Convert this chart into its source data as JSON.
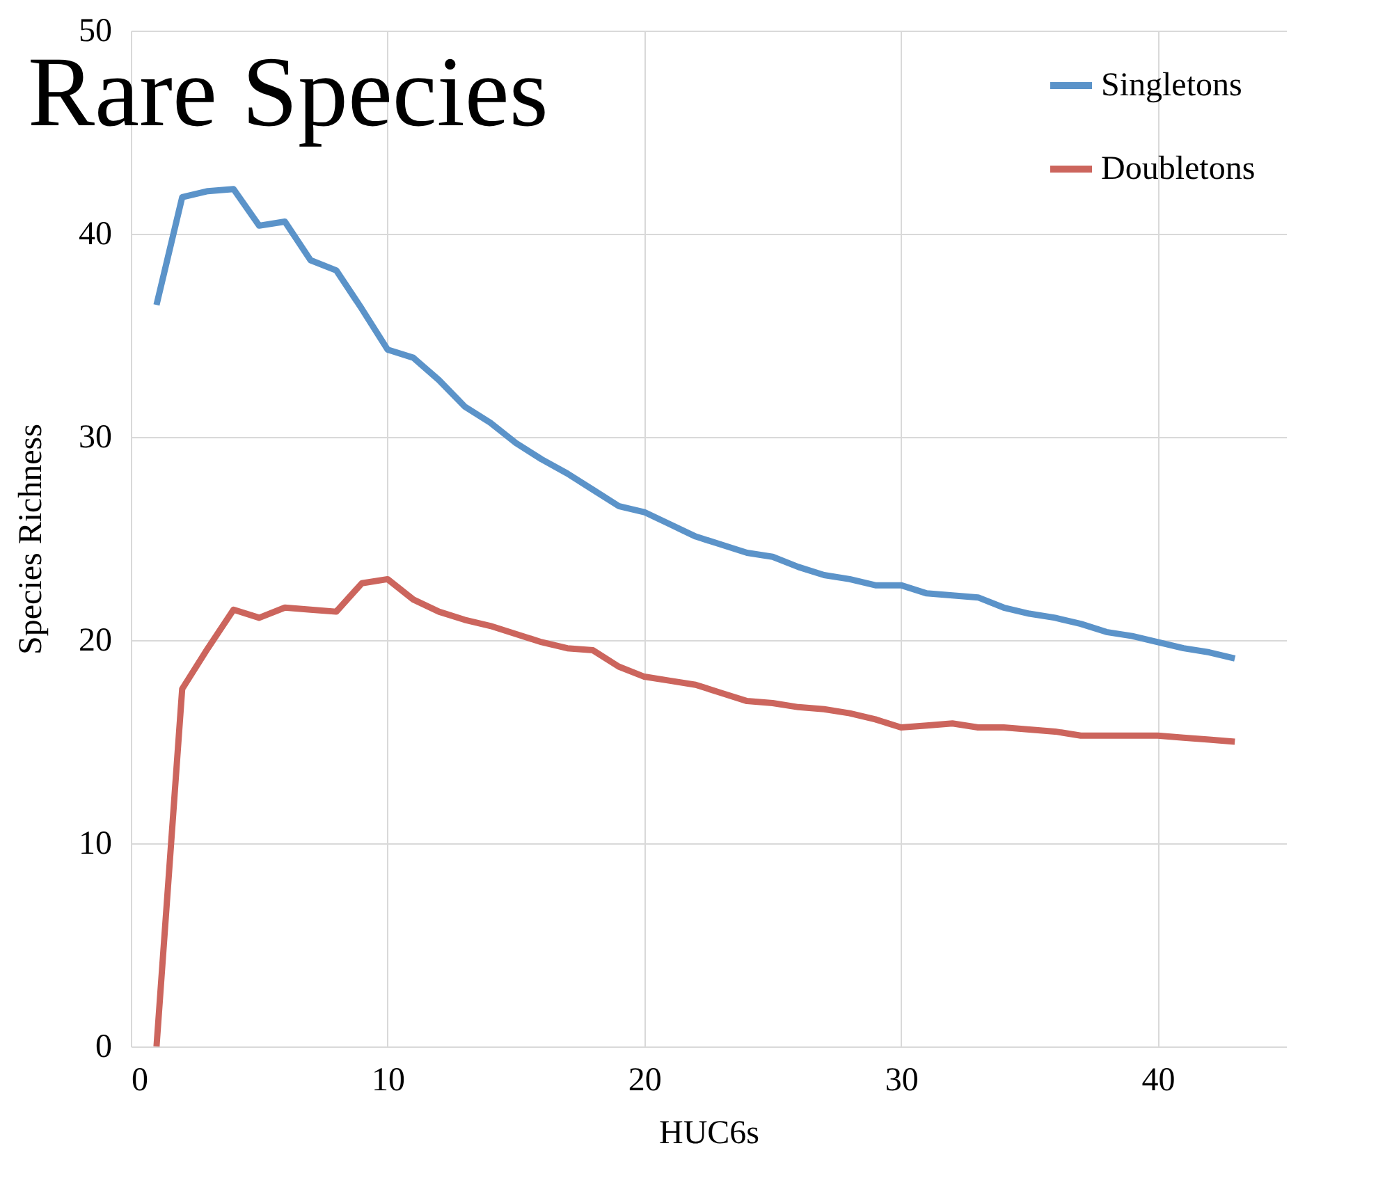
{
  "chart_data": {
    "type": "line",
    "title": "Rare Species",
    "xlabel": "HUC6s",
    "ylabel": "Species Richness",
    "x": [
      1,
      2,
      3,
      4,
      5,
      6,
      7,
      8,
      9,
      10,
      11,
      12,
      13,
      14,
      15,
      16,
      17,
      18,
      19,
      20,
      21,
      22,
      23,
      24,
      25,
      26,
      27,
      28,
      29,
      30,
      31,
      32,
      33,
      34,
      35,
      36,
      37,
      38,
      39,
      40,
      41,
      42,
      43
    ],
    "series": [
      {
        "name": "Singletons",
        "color": "#5b93c9",
        "values": [
          36.5,
          41.8,
          42.1,
          42.2,
          40.4,
          40.6,
          38.7,
          38.2,
          36.3,
          34.3,
          33.9,
          32.8,
          31.5,
          30.7,
          29.7,
          28.9,
          28.2,
          27.4,
          26.6,
          26.3,
          25.7,
          25.1,
          24.7,
          24.3,
          24.1,
          23.6,
          23.2,
          23.0,
          22.7,
          22.7,
          22.3,
          22.2,
          22.1,
          21.6,
          21.3,
          21.1,
          20.8,
          20.4,
          20.2,
          19.9,
          19.6,
          19.4,
          19.1
        ]
      },
      {
        "name": "Doubletons",
        "color": "#cc655d",
        "values": [
          0,
          17.6,
          19.6,
          21.5,
          21.1,
          21.6,
          21.5,
          21.4,
          22.8,
          23.0,
          22.0,
          21.4,
          21.0,
          20.7,
          20.3,
          19.9,
          19.6,
          19.5,
          18.7,
          18.2,
          18.0,
          17.8,
          17.4,
          17.0,
          16.9,
          16.7,
          16.6,
          16.4,
          16.1,
          15.7,
          15.8,
          15.9,
          15.7,
          15.7,
          15.6,
          15.5,
          15.3,
          15.3,
          15.3,
          15.3,
          15.2,
          15.1,
          15.0
        ]
      }
    ],
    "xlim": [
      0,
      45
    ],
    "xticks": [
      0,
      10,
      20,
      30,
      40
    ],
    "ylim": [
      0,
      50
    ],
    "yticks": [
      0,
      10,
      20,
      30,
      40,
      50
    ],
    "grid": true,
    "legend": "top right",
    "marker": "none",
    "line_style": "solid"
  }
}
